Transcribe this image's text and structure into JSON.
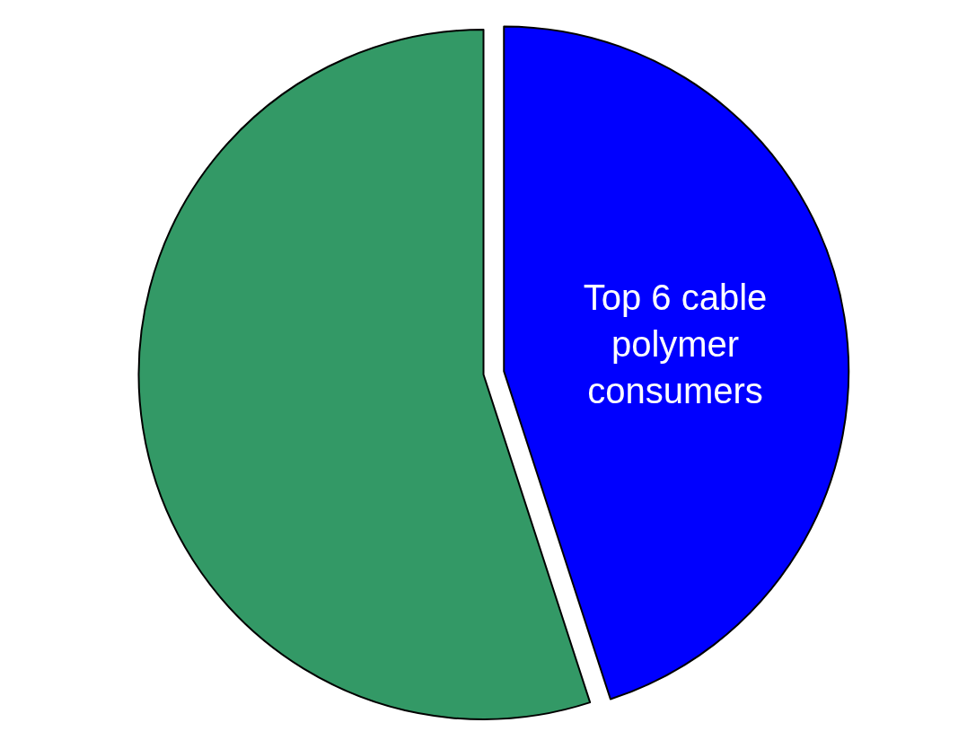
{
  "chart_data": {
    "type": "pie",
    "categories": [
      "Top 6 cable polymer consumers",
      null
    ],
    "values": [
      45,
      55
    ],
    "colors": [
      "#0000ff",
      "#339966"
    ]
  }
}
